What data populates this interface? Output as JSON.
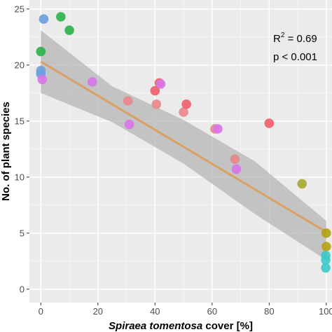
{
  "chart_data": {
    "type": "scatter",
    "xlabel_italic": "Spiraea tomentosa",
    "xlabel_rest": " cover [%]",
    "ylabel": "No. of plant species",
    "xlim": [
      -4,
      102
    ],
    "ylim": [
      -1.2,
      25.8
    ],
    "x_ticks": [
      0,
      20,
      40,
      60,
      80,
      100
    ],
    "y_ticks": [
      0,
      5,
      10,
      15,
      20,
      25
    ],
    "grid": true,
    "background": "#ebebeb",
    "annotations": {
      "r2_base": "R",
      "r2_sup": "2",
      "r2_value": " = 0.69",
      "p_value": "p < 0.001"
    },
    "regression": {
      "intercept": 20.3,
      "slope": -0.152,
      "line_color": "#d9a066",
      "ci_lower": [
        [
          0,
          17.5
        ],
        [
          25,
          14.9
        ],
        [
          50,
          11.2
        ],
        [
          75,
          6.7
        ],
        [
          100,
          2.6
        ]
      ],
      "ci_upper": [
        [
          0,
          23.1
        ],
        [
          25,
          18.1
        ],
        [
          50,
          15.1
        ],
        [
          75,
          11.4
        ],
        [
          100,
          6.1
        ]
      ],
      "ci_color": "#b5b5b5"
    },
    "points": [
      {
        "x": 1,
        "y": 24.1,
        "color": "#6e9fe0"
      },
      {
        "x": 7,
        "y": 24.3,
        "color": "#2cb34b"
      },
      {
        "x": 10,
        "y": 23.1,
        "color": "#2cb34b"
      },
      {
        "x": 0,
        "y": 21.2,
        "color": "#2cb34b"
      },
      {
        "x": 0,
        "y": 19.5,
        "color": "#6e9fe0"
      },
      {
        "x": 0,
        "y": 19.2,
        "color": "#6e9fe0"
      },
      {
        "x": 0.5,
        "y": 18.7,
        "color": "#d876e8"
      },
      {
        "x": 18,
        "y": 18.5,
        "color": "#d876e8"
      },
      {
        "x": 30.5,
        "y": 16.8,
        "color": "#e8888c"
      },
      {
        "x": 31,
        "y": 14.7,
        "color": "#d876e8"
      },
      {
        "x": 40,
        "y": 17.7,
        "color": "#f0606a"
      },
      {
        "x": 40.5,
        "y": 16.5,
        "color": "#e8888c"
      },
      {
        "x": 41.5,
        "y": 18.4,
        "color": "#f0606a"
      },
      {
        "x": 42,
        "y": 18.3,
        "color": "#d876e8"
      },
      {
        "x": 50,
        "y": 15.8,
        "color": "#e8888c"
      },
      {
        "x": 51,
        "y": 16.5,
        "color": "#f0606a"
      },
      {
        "x": 61,
        "y": 14.3,
        "color": "#e8888c"
      },
      {
        "x": 62,
        "y": 14.3,
        "color": "#d876e8"
      },
      {
        "x": 68,
        "y": 11.6,
        "color": "#e8888c"
      },
      {
        "x": 68.5,
        "y": 10.7,
        "color": "#d876e8"
      },
      {
        "x": 80,
        "y": 14.8,
        "color": "#f0606a"
      },
      {
        "x": 91.5,
        "y": 9.4,
        "color": "#a6aa33"
      },
      {
        "x": 100,
        "y": 5.0,
        "color": "#b5a215"
      },
      {
        "x": 100,
        "y": 3.8,
        "color": "#b5a215"
      },
      {
        "x": 99.8,
        "y": 3.0,
        "color": "#3ec9c9"
      },
      {
        "x": 99.8,
        "y": 2.6,
        "color": "#3ec9c9"
      },
      {
        "x": 99.8,
        "y": 1.9,
        "color": "#3ec9c9"
      }
    ]
  }
}
